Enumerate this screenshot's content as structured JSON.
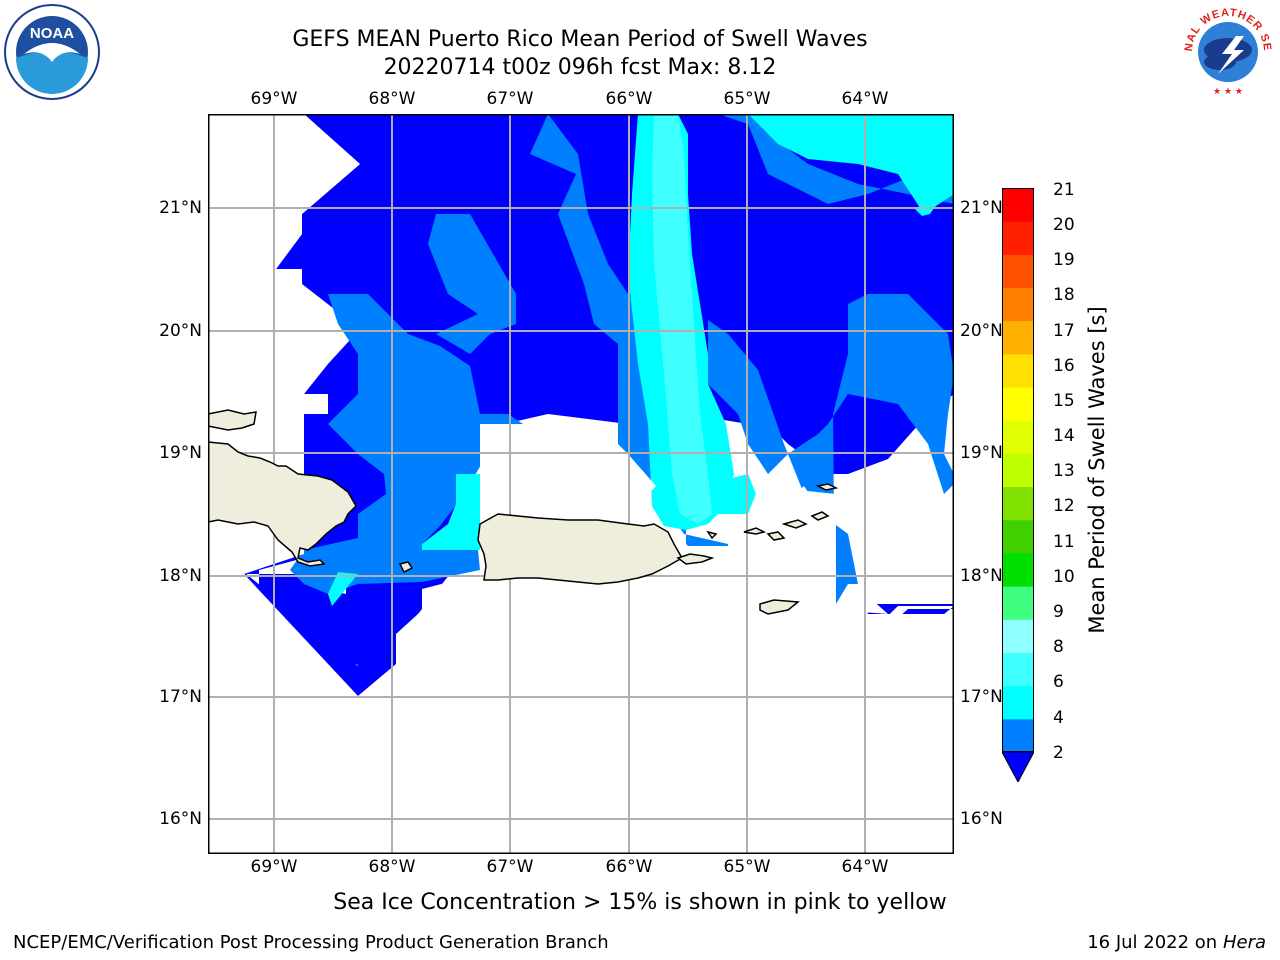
{
  "title": {
    "line1": "GEFS MEAN Puerto Rico Mean Period of Swell Waves",
    "line2": "20220714 t00z 096h fcst   Max: 8.12"
  },
  "map": {
    "lon_labels": [
      "69°W",
      "68°W",
      "67°W",
      "66°W",
      "65°W",
      "64°W"
    ],
    "lat_labels": [
      "21°N",
      "20°N",
      "19°N",
      "18°N",
      "17°N",
      "16°N"
    ],
    "lon_range": [
      -69.55,
      -63.25
    ],
    "lat_range": [
      15.75,
      21.75
    ],
    "grid": true
  },
  "colorbar": {
    "label": "Mean Period of Swell Waves [s]",
    "ticks": [
      "21",
      "20",
      "19",
      "18",
      "17",
      "16",
      "15",
      "14",
      "13",
      "12",
      "11",
      "10",
      "9",
      "8",
      "6",
      "4",
      "2"
    ],
    "colors": [
      "#0000ff",
      "#0080ff",
      "#00ffff",
      "#40ffff",
      "#90ffff",
      "#40ff80",
      "#00e000",
      "#40d000",
      "#80e000",
      "#c0ff00",
      "#e0ff00",
      "#ffff00",
      "#ffe000",
      "#ffb000",
      "#ff8000",
      "#ff5000",
      "#ff2000",
      "#ff0000"
    ]
  },
  "footer": {
    "ice_note": "Sea Ice Concentration > 15% is shown in pink to yellow",
    "left": "NCEP/EMC/Verification Post Processing Product Generation Branch",
    "right_date": "16 Jul 2022 on",
    "right_host": "Hera"
  },
  "logos": {
    "noaa_text": "NOAA",
    "nws_text": "NATIONAL WEATHER SERVICE"
  }
}
